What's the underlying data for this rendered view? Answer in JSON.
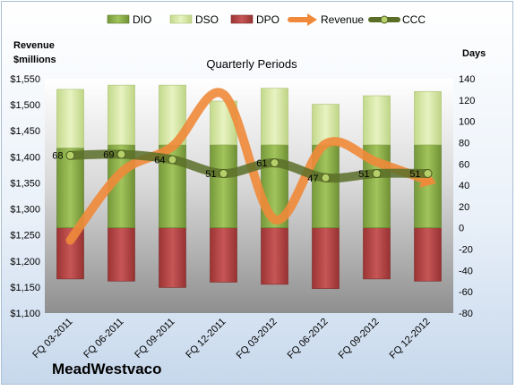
{
  "chart_data": {
    "type": "bar",
    "title": "Quarterly Periods",
    "brand": "MeadWestvaco",
    "left_axis_title": [
      "Revenue",
      "$millions"
    ],
    "right_axis_title": "Days",
    "categories": [
      "FQ 03-2011",
      "FQ 06-2011",
      "FQ 09-2011",
      "FQ 12-2011",
      "FQ 03-2012",
      "FQ 06-2012",
      "FQ 09-2012",
      "FQ 12-2012"
    ],
    "left_axis": {
      "min": 1100,
      "max": 1550,
      "step": 50,
      "prefix": "$"
    },
    "right_axis": {
      "min": -80,
      "max": 140,
      "step": 20
    },
    "legend": [
      "DIO",
      "DSO",
      "DPO",
      "Revenue",
      "CCC"
    ],
    "series": [
      {
        "name": "DIO",
        "axis": "right",
        "values": [
          75,
          78,
          78,
          78,
          78,
          78,
          78,
          78
        ]
      },
      {
        "name": "DSO",
        "axis": "right",
        "values": [
          55,
          56,
          56,
          41,
          53,
          38,
          46,
          50
        ]
      },
      {
        "name": "DPO",
        "axis": "right",
        "values": [
          -48,
          -50,
          -56,
          -51,
          -53,
          -57,
          -48,
          -50
        ]
      },
      {
        "name": "Revenue",
        "axis": "left",
        "values": [
          1240,
          1370,
          1420,
          1520,
          1280,
          1425,
          1390,
          1355
        ]
      },
      {
        "name": "CCC",
        "axis": "right",
        "values": [
          68,
          69,
          64,
          51,
          61,
          47,
          51,
          51
        ]
      }
    ],
    "colors": {
      "DIO": "#8fb34a",
      "DSO": "#d8e9a6",
      "DPO": "#b94646",
      "Revenue": "#f0893a",
      "CCC": "#5b6e28"
    },
    "legend_position": "top",
    "grid": false
  }
}
